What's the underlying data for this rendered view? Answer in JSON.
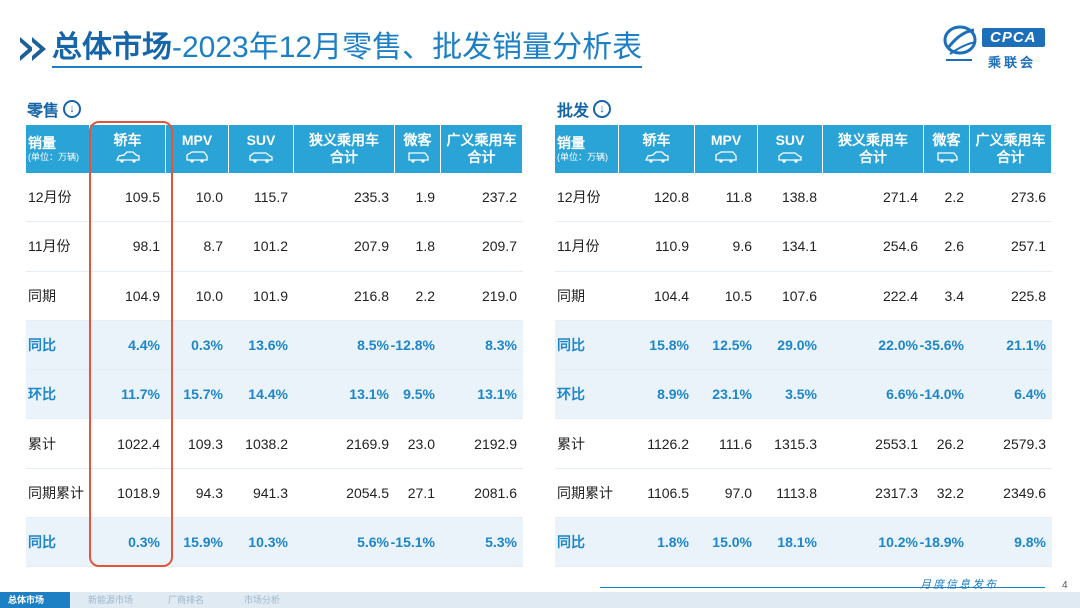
{
  "header": {
    "title_bold": "总体市场",
    "title_sep": "-",
    "title_rest": "2023年12月零售、批发销量分析表"
  },
  "logo": {
    "text": "CPCA",
    "cn": "乘联会"
  },
  "retail": {
    "label": "零售",
    "header": {
      "first_main": "销量",
      "first_unit": "(单位：万辆)",
      "cols": [
        {
          "line1": "轿车",
          "line2": "",
          "icon": "sedan-icon"
        },
        {
          "line1": "MPV",
          "line2": "",
          "icon": "mpv-icon"
        },
        {
          "line1": "SUV",
          "line2": "",
          "icon": "suv-icon"
        },
        {
          "line1": "狭义乘用车",
          "line2": "合计",
          "icon": ""
        },
        {
          "line1": "微客",
          "line2": "",
          "icon": "minivan-icon"
        },
        {
          "line1": "广义乘用车",
          "line2": "合计",
          "icon": ""
        }
      ]
    },
    "rows": [
      {
        "label": "12月份",
        "pct": false,
        "values": [
          "109.5",
          "10.0",
          "115.7",
          "235.3",
          "1.9",
          "237.2"
        ]
      },
      {
        "label": "11月份",
        "pct": false,
        "values": [
          "98.1",
          "8.7",
          "101.2",
          "207.9",
          "1.8",
          "209.7"
        ]
      },
      {
        "label": "同期",
        "pct": false,
        "values": [
          "104.9",
          "10.0",
          "101.9",
          "216.8",
          "2.2",
          "219.0"
        ]
      },
      {
        "label": "同比",
        "pct": true,
        "values": [
          "4.4%",
          "0.3%",
          "13.6%",
          "8.5%",
          "-12.8%",
          "8.3%"
        ]
      },
      {
        "label": "环比",
        "pct": true,
        "values": [
          "11.7%",
          "15.7%",
          "14.4%",
          "13.1%",
          "9.5%",
          "13.1%"
        ]
      },
      {
        "label": "累计",
        "pct": false,
        "values": [
          "1022.4",
          "109.3",
          "1038.2",
          "2169.9",
          "23.0",
          "2192.9"
        ]
      },
      {
        "label": "同期累计",
        "pct": false,
        "values": [
          "1018.9",
          "94.3",
          "941.3",
          "2054.5",
          "27.1",
          "2081.6"
        ]
      },
      {
        "label": "同比",
        "pct": true,
        "values": [
          "0.3%",
          "15.9%",
          "10.3%",
          "5.6%",
          "-15.1%",
          "5.3%"
        ]
      }
    ]
  },
  "wholesale": {
    "label": "批发",
    "header": {
      "first_main": "销量",
      "first_unit": "(单位：万辆)",
      "cols": [
        {
          "line1": "轿车",
          "line2": "",
          "icon": "sedan-icon"
        },
        {
          "line1": "MPV",
          "line2": "",
          "icon": "mpv-icon"
        },
        {
          "line1": "SUV",
          "line2": "",
          "icon": "suv-icon"
        },
        {
          "line1": "狭义乘用车",
          "line2": "合计",
          "icon": ""
        },
        {
          "line1": "微客",
          "line2": "",
          "icon": "minivan-icon"
        },
        {
          "line1": "广义乘用车",
          "line2": "合计",
          "icon": ""
        }
      ]
    },
    "rows": [
      {
        "label": "12月份",
        "pct": false,
        "values": [
          "120.8",
          "11.8",
          "138.8",
          "271.4",
          "2.2",
          "273.6"
        ]
      },
      {
        "label": "11月份",
        "pct": false,
        "values": [
          "110.9",
          "9.6",
          "134.1",
          "254.6",
          "2.6",
          "257.1"
        ]
      },
      {
        "label": "同期",
        "pct": false,
        "values": [
          "104.4",
          "10.5",
          "107.6",
          "222.4",
          "3.4",
          "225.8"
        ]
      },
      {
        "label": "同比",
        "pct": true,
        "values": [
          "15.8%",
          "12.5%",
          "29.0%",
          "22.0%",
          "-35.6%",
          "21.1%"
        ]
      },
      {
        "label": "环比",
        "pct": true,
        "values": [
          "8.9%",
          "23.1%",
          "3.5%",
          "6.6%",
          "-14.0%",
          "6.4%"
        ]
      },
      {
        "label": "累计",
        "pct": false,
        "values": [
          "1126.2",
          "111.6",
          "1315.3",
          "2553.1",
          "26.2",
          "2579.3"
        ]
      },
      {
        "label": "同期累计",
        "pct": false,
        "values": [
          "1106.5",
          "97.0",
          "1113.8",
          "2317.3",
          "32.2",
          "2349.6"
        ]
      },
      {
        "label": "同比",
        "pct": true,
        "values": [
          "1.8%",
          "15.0%",
          "18.1%",
          "10.2%",
          "-18.9%",
          "9.8%"
        ]
      }
    ]
  },
  "footer": {
    "tabs": [
      "总体市场",
      "新能源市场",
      "厂商排名",
      "市场分析"
    ],
    "slogan": "月度信息发布",
    "page": "4"
  },
  "colors": {
    "header_bg": "#2aa3d6",
    "pct_text": "#1d86c9",
    "highlight": "#e2553b",
    "title": "#1565a8"
  }
}
